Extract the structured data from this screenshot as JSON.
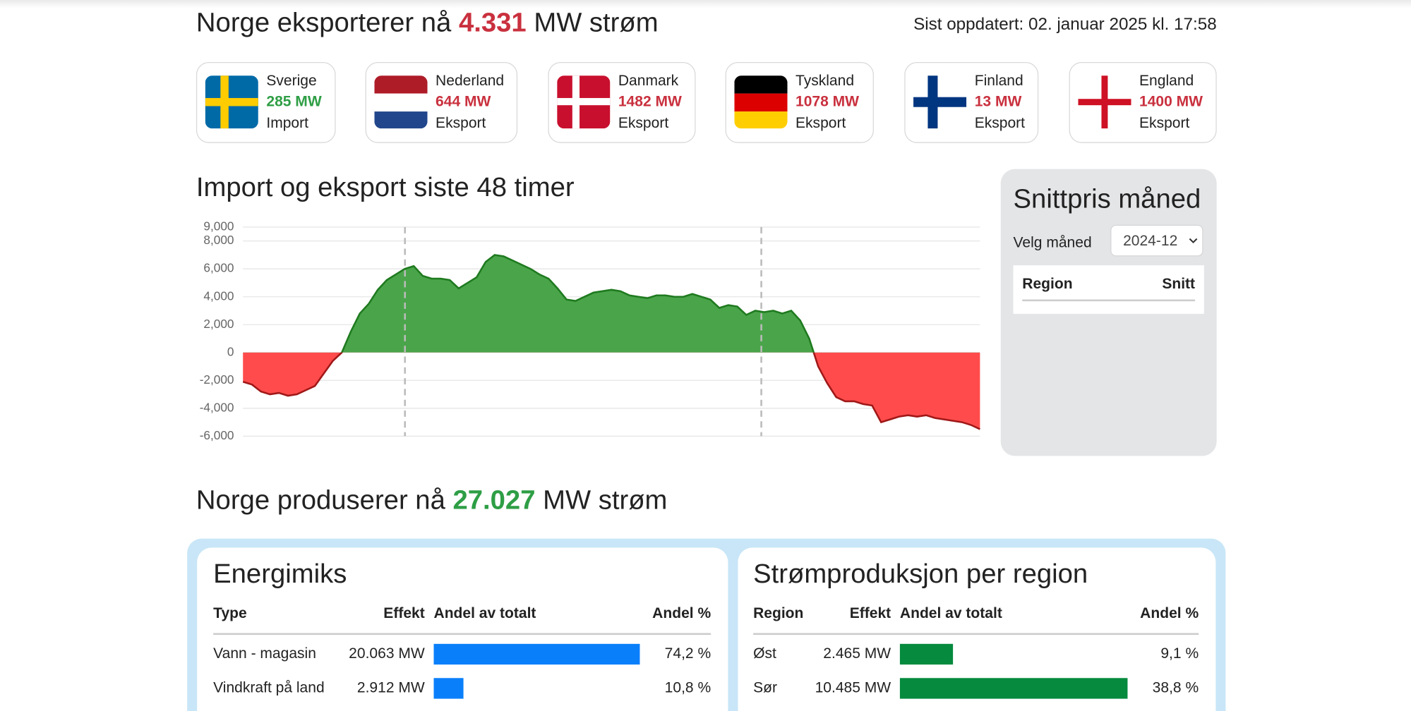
{
  "header": {
    "title_prefix": "Norge eksporterer nå",
    "title_value": "4.331",
    "title_suffix": "MW strøm",
    "updated": "Sist oppdatert: 02. januar 2025 kl. 17:58"
  },
  "countries": [
    {
      "name": "Sverige",
      "value": "285 MW",
      "direction": "Import",
      "color": "#2e9e45"
    },
    {
      "name": "Nederland",
      "value": "644 MW",
      "direction": "Eksport",
      "color": "#c9303e"
    },
    {
      "name": "Danmark",
      "value": "1482 MW",
      "direction": "Eksport",
      "color": "#c9303e"
    },
    {
      "name": "Tyskland",
      "value": "1078 MW",
      "direction": "Eksport",
      "color": "#c9303e"
    },
    {
      "name": "Finland",
      "value": "13 MW",
      "direction": "Eksport",
      "color": "#c9303e"
    },
    {
      "name": "England",
      "value": "1400 MW",
      "direction": "Eksport",
      "color": "#c9303e"
    }
  ],
  "chart_data": {
    "type": "area",
    "title": "Import og eksport siste 48 timer",
    "values": [
      -2100,
      -2300,
      -2800,
      -3000,
      -2900,
      -3100,
      -3000,
      -2700,
      -2400,
      -1500,
      -600,
      0,
      1500,
      2800,
      3500,
      4500,
      5200,
      5600,
      6000,
      6200,
      5500,
      5300,
      5300,
      5200,
      4600,
      5000,
      5400,
      6500,
      7000,
      6900,
      6600,
      6300,
      6000,
      5600,
      5300,
      4600,
      3800,
      3700,
      4000,
      4300,
      4400,
      4500,
      4400,
      4100,
      4000,
      3900,
      4100,
      4100,
      4000,
      4000,
      4200,
      4000,
      3800,
      3200,
      3400,
      3300,
      2700,
      3000,
      2900,
      3000,
      2800,
      3000,
      2300,
      1000,
      -1000,
      -2200,
      -3200,
      -3500,
      -3500,
      -3700,
      -3800,
      -5000,
      -4800,
      -4600,
      -4500,
      -4600,
      -4500,
      -4700,
      -4800,
      -4900,
      -5000,
      -5200,
      -5500
    ],
    "ylim": [
      -6000,
      9000
    ],
    "yticks": [
      {
        "value": -6000,
        "label": "-6,000"
      },
      {
        "value": -4000,
        "label": "-4,000"
      },
      {
        "value": -2000,
        "label": "-2,000"
      },
      0,
      {
        "value": 2000,
        "label": "2,000"
      },
      {
        "value": 4000,
        "label": "4,000"
      },
      {
        "value": 6000,
        "label": "6,000"
      },
      {
        "value": 8000,
        "label": "8,000"
      },
      {
        "value": 9000,
        "label": "9,000"
      }
    ],
    "grid": true,
    "positive_color": "#4aa54a",
    "positive_line": "#1f7a1f",
    "negative_color": "#ff4b4b",
    "negative_line": "#a01818"
  },
  "price_panel": {
    "title": "Snittpris måned",
    "select_label": "Velg måned",
    "selected": "2024-12",
    "columns": [
      "Region",
      "Snitt"
    ]
  },
  "production": {
    "title_prefix": "Norge produserer nå",
    "title_value": "27.027",
    "title_suffix": "MW strøm"
  },
  "energimiks": {
    "title": "Energimiks",
    "columns": [
      "Type",
      "Effekt",
      "Andel av totalt",
      "Andel %"
    ],
    "color": "#0a7ffa",
    "rows": [
      {
        "label": "Vann - magasin",
        "effekt": "20.063 MW",
        "share": 74.2,
        "share_label": "74,2 %"
      },
      {
        "label": "Vindkraft på land",
        "effekt": "2.912 MW",
        "share": 10.8,
        "share_label": "10,8 %"
      }
    ]
  },
  "regions": {
    "title": "Strømproduksjon per region",
    "columns": [
      "Region",
      "Effekt",
      "Andel av totalt",
      "Andel %"
    ],
    "color": "#058a3e",
    "rows": [
      {
        "label": "Øst",
        "effekt": "2.465 MW",
        "share": 9.1,
        "share_label": "9,1 %"
      },
      {
        "label": "Sør",
        "effekt": "10.485 MW",
        "share": 38.8,
        "share_label": "38,8 %"
      }
    ]
  }
}
